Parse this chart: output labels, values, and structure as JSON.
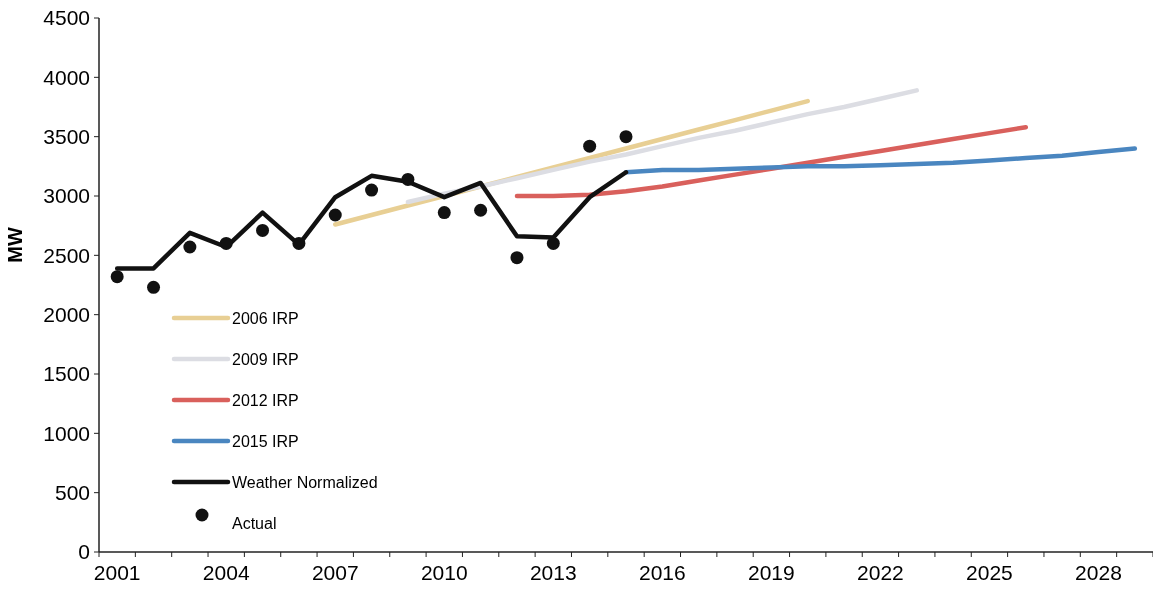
{
  "chart_data": {
    "type": "line",
    "ylabel": "MW",
    "categories": [
      "2001",
      null,
      null,
      "2004",
      null,
      null,
      "2007",
      null,
      null,
      "2010",
      null,
      null,
      "2013",
      null,
      null,
      "2016",
      null,
      null,
      "2019",
      null,
      null,
      "2022",
      null,
      null,
      "2025",
      null,
      null,
      "2028",
      null
    ],
    "ylim": [
      0,
      4500
    ],
    "yticks": [
      0,
      500,
      1000,
      1500,
      2000,
      2500,
      3000,
      3500,
      4000,
      4500
    ],
    "grid": false,
    "legend": "bottom left",
    "series": [
      {
        "name": "2006 IRP",
        "color": "#e8cf94",
        "values": [
          null,
          null,
          null,
          null,
          null,
          null,
          2760,
          2840,
          2920,
          3000,
          3080,
          3160,
          3240,
          3320,
          3400,
          3480,
          3560,
          3640,
          3720,
          3800,
          null,
          null,
          null,
          null,
          null,
          null,
          null,
          null,
          null
        ]
      },
      {
        "name": "2009 IRP",
        "color": "#dcdde3",
        "values": [
          null,
          null,
          null,
          null,
          null,
          null,
          null,
          null,
          2950,
          3020,
          3080,
          3150,
          3220,
          3290,
          3350,
          3420,
          3490,
          3550,
          3620,
          3690,
          3750,
          3820,
          3890,
          null,
          null,
          null,
          null,
          null,
          null
        ]
      },
      {
        "name": "2012 IRP",
        "color": "#d9605c",
        "values": [
          null,
          null,
          null,
          null,
          null,
          null,
          null,
          null,
          null,
          null,
          null,
          3000,
          3000,
          3010,
          3040,
          3080,
          3130,
          3180,
          3230,
          3280,
          3330,
          3380,
          3430,
          3480,
          3530,
          3580,
          null,
          null,
          null
        ]
      },
      {
        "name": "2015 IRP",
        "color": "#4a86c0",
        "values": [
          null,
          null,
          null,
          null,
          null,
          null,
          null,
          null,
          null,
          null,
          null,
          null,
          null,
          null,
          3200,
          3220,
          3220,
          3230,
          3240,
          3250,
          3250,
          3260,
          3270,
          3280,
          3300,
          3320,
          3340,
          3370,
          3400
        ]
      },
      {
        "name": "Weather Normalized",
        "color": "#111111",
        "values": [
          2390,
          2390,
          2690,
          2570,
          2860,
          2590,
          2990,
          3170,
          3120,
          2990,
          3110,
          2660,
          2650,
          2990,
          3200,
          null,
          null,
          null,
          null,
          null,
          null,
          null,
          null,
          null,
          null,
          null,
          null,
          null,
          null
        ]
      },
      {
        "name": "Actual",
        "type": "scatter",
        "marker": "circle",
        "color": "#111111",
        "values": [
          2320,
          2230,
          2570,
          2600,
          2710,
          2600,
          2840,
          3050,
          3140,
          2860,
          2880,
          2480,
          2600,
          3420,
          3500,
          null,
          null,
          null,
          null,
          null,
          null,
          null,
          null,
          null,
          null,
          null,
          null,
          null,
          null
        ]
      }
    ]
  }
}
